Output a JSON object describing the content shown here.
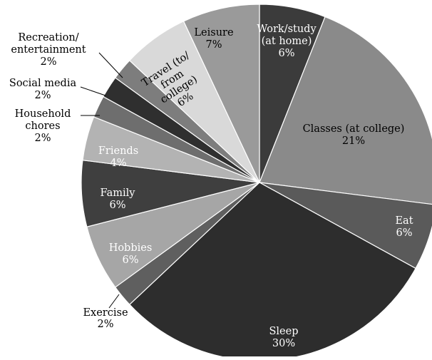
{
  "chart_data": {
    "type": "pie",
    "title": "",
    "slices": [
      {
        "label": [
          "Work/study",
          "(at home)"
        ],
        "pct_label": "6%",
        "value": 6,
        "color": "#3b3b3b",
        "text_color": "#ffffff"
      },
      {
        "label": [
          "Classes (at college)"
        ],
        "pct_label": "21%",
        "value": 21,
        "color": "#8a8a8a",
        "text_color": "#000000"
      },
      {
        "label": [
          "Eat"
        ],
        "pct_label": "6%",
        "value": 6,
        "color": "#5a5a5a",
        "text_color": "#ffffff"
      },
      {
        "label": [
          "Sleep"
        ],
        "pct_label": "30%",
        "value": 30,
        "color": "#2d2d2d",
        "text_color": "#ffffff"
      },
      {
        "label": [
          "Exercise"
        ],
        "pct_label": "2%",
        "value": 2,
        "color": "#5f5f5f",
        "text_color": "#000000"
      },
      {
        "label": [
          "Hobbies"
        ],
        "pct_label": "6%",
        "value": 6,
        "color": "#a6a6a6",
        "text_color": "#ffffff"
      },
      {
        "label": [
          "Family"
        ],
        "pct_label": "6%",
        "value": 6,
        "color": "#3f3f3f",
        "text_color": "#ffffff"
      },
      {
        "label": [
          "Friends"
        ],
        "pct_label": "4%",
        "value": 4,
        "color": "#b3b3b3",
        "text_color": "#ffffff"
      },
      {
        "label": [
          "Household",
          "chores"
        ],
        "pct_label": "2%",
        "value": 2,
        "color": "#6e6e6e",
        "text_color": "#000000"
      },
      {
        "label": [
          "Social media"
        ],
        "pct_label": "2%",
        "value": 2,
        "color": "#2f2f2f",
        "text_color": "#000000"
      },
      {
        "label": [
          "Recreation/",
          "entertainment"
        ],
        "pct_label": "2%",
        "value": 2,
        "color": "#7d7d7d",
        "text_color": "#000000"
      },
      {
        "label": [
          "Travel (to/",
          "from",
          "college)"
        ],
        "pct_label": "6%",
        "value": 6,
        "color": "#d9d9d9",
        "text_color": "#000000"
      },
      {
        "label": [
          "Leisure"
        ],
        "pct_label": "7%",
        "value": 7,
        "color": "#9a9a9a",
        "text_color": "#000000"
      }
    ]
  }
}
